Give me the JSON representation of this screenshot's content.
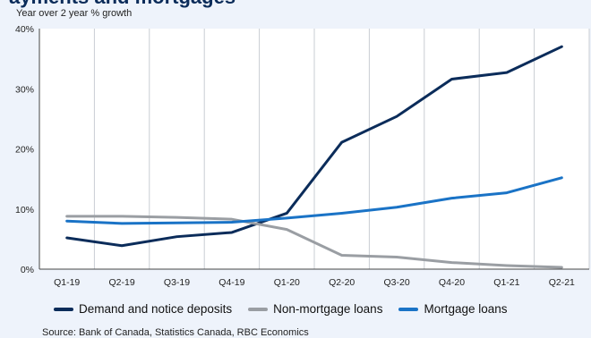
{
  "header": {
    "title_partial": "ayments and mortgages",
    "subtitle": "Year over 2 year % growth"
  },
  "source": "Source: Bank of Canada, Statistics Canada, RBC Economics",
  "chart_data": {
    "type": "line",
    "title": "",
    "xlabel": "",
    "ylabel": "Year over 2 year % growth",
    "ylim": [
      0,
      40
    ],
    "yticks": [
      "0%",
      "10%",
      "20%",
      "30%",
      "40%"
    ],
    "ytick_values": [
      0,
      10,
      20,
      30,
      40
    ],
    "grid": "vertical",
    "legend_position": "bottom",
    "categories": [
      "Q1-19",
      "Q2-19",
      "Q3-19",
      "Q4-19",
      "Q1-20",
      "Q2-20",
      "Q3-20",
      "Q4-20",
      "Q1-21",
      "Q2-21"
    ],
    "series": [
      {
        "name": "Demand and notice deposits",
        "color": "#0b2c5a",
        "values": [
          5.2,
          3.9,
          5.4,
          6.1,
          9.3,
          21.1,
          25.4,
          31.6,
          32.7,
          37.0
        ]
      },
      {
        "name": "Non-mortgage loans",
        "color": "#9a9ea3",
        "values": [
          8.8,
          8.8,
          8.6,
          8.3,
          6.6,
          2.3,
          2.0,
          1.1,
          0.6,
          0.3
        ]
      },
      {
        "name": "Mortgage loans",
        "color": "#1a73c6",
        "values": [
          8.0,
          7.6,
          7.7,
          7.8,
          8.5,
          9.3,
          10.3,
          11.8,
          12.7,
          15.2
        ]
      }
    ]
  }
}
